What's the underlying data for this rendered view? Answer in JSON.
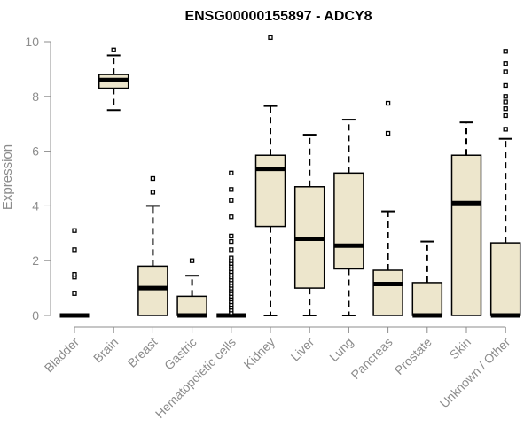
{
  "chart_data": {
    "type": "boxplot",
    "title": "ENSG00000155897 - ADCY8",
    "xlabel": "",
    "ylabel": "Expression",
    "ylim": [
      0,
      10
    ],
    "yticks": [
      0,
      2,
      4,
      6,
      8,
      10
    ],
    "categories": [
      "Bladder",
      "Brain",
      "Breast",
      "Gastric",
      "Hematopoietic cells",
      "Kidney",
      "Liver",
      "Lung",
      "Pancreas",
      "Prostate",
      "Skin",
      "Unknown / Other"
    ],
    "box_color": "#ede6cc",
    "series": [
      {
        "name": "Bladder",
        "min": 0,
        "q1": 0,
        "median": 0,
        "q3": 0,
        "max": 0,
        "outliers": [
          0.8,
          1.4,
          1.5,
          2.4,
          3.1
        ]
      },
      {
        "name": "Brain",
        "min": 7.5,
        "q1": 8.3,
        "median": 8.6,
        "q3": 8.8,
        "max": 9.5,
        "outliers": [
          9.7
        ]
      },
      {
        "name": "Breast",
        "min": 0,
        "q1": 0,
        "median": 1.0,
        "q3": 1.8,
        "max": 4.0,
        "outliers": [
          4.5,
          5.0
        ]
      },
      {
        "name": "Gastric",
        "min": 0,
        "q1": 0,
        "median": 0,
        "q3": 0.7,
        "max": 1.45,
        "outliers": [
          2.0
        ]
      },
      {
        "name": "Hematopoietic cells",
        "min": 0,
        "q1": 0,
        "median": 0,
        "q3": 0,
        "max": 0,
        "outliers": [
          0.1,
          0.2,
          0.3,
          0.4,
          0.5,
          0.6,
          0.7,
          0.8,
          0.9,
          1.0,
          1.1,
          1.2,
          1.3,
          1.4,
          1.5,
          1.6,
          1.7,
          1.8,
          1.9,
          2.0,
          2.1,
          2.4,
          2.7,
          2.9,
          3.6,
          4.2,
          4.6,
          5.2
        ]
      },
      {
        "name": "Kidney",
        "min": 0,
        "q1": 3.25,
        "median": 5.35,
        "q3": 5.85,
        "max": 7.65,
        "outliers": [
          10.15
        ]
      },
      {
        "name": "Liver",
        "min": 0,
        "q1": 1.0,
        "median": 2.8,
        "q3": 4.7,
        "max": 6.6,
        "outliers": []
      },
      {
        "name": "Lung",
        "min": 0,
        "q1": 1.7,
        "median": 2.55,
        "q3": 5.2,
        "max": 7.15,
        "outliers": []
      },
      {
        "name": "Pancreas",
        "min": 0,
        "q1": 0,
        "median": 1.15,
        "q3": 1.65,
        "max": 3.8,
        "outliers": [
          6.65,
          7.75
        ]
      },
      {
        "name": "Prostate",
        "min": 0,
        "q1": 0,
        "median": 0,
        "q3": 1.2,
        "max": 2.7,
        "outliers": []
      },
      {
        "name": "Skin",
        "min": 0,
        "q1": 0,
        "median": 4.1,
        "q3": 5.85,
        "max": 7.05,
        "outliers": []
      },
      {
        "name": "Unknown / Other",
        "min": 0,
        "q1": 0,
        "median": 0,
        "q3": 2.65,
        "max": 6.45,
        "outliers": [
          6.8,
          7.3,
          7.55,
          7.8,
          8.0,
          8.4,
          8.9,
          9.2,
          9.65
        ]
      }
    ]
  }
}
